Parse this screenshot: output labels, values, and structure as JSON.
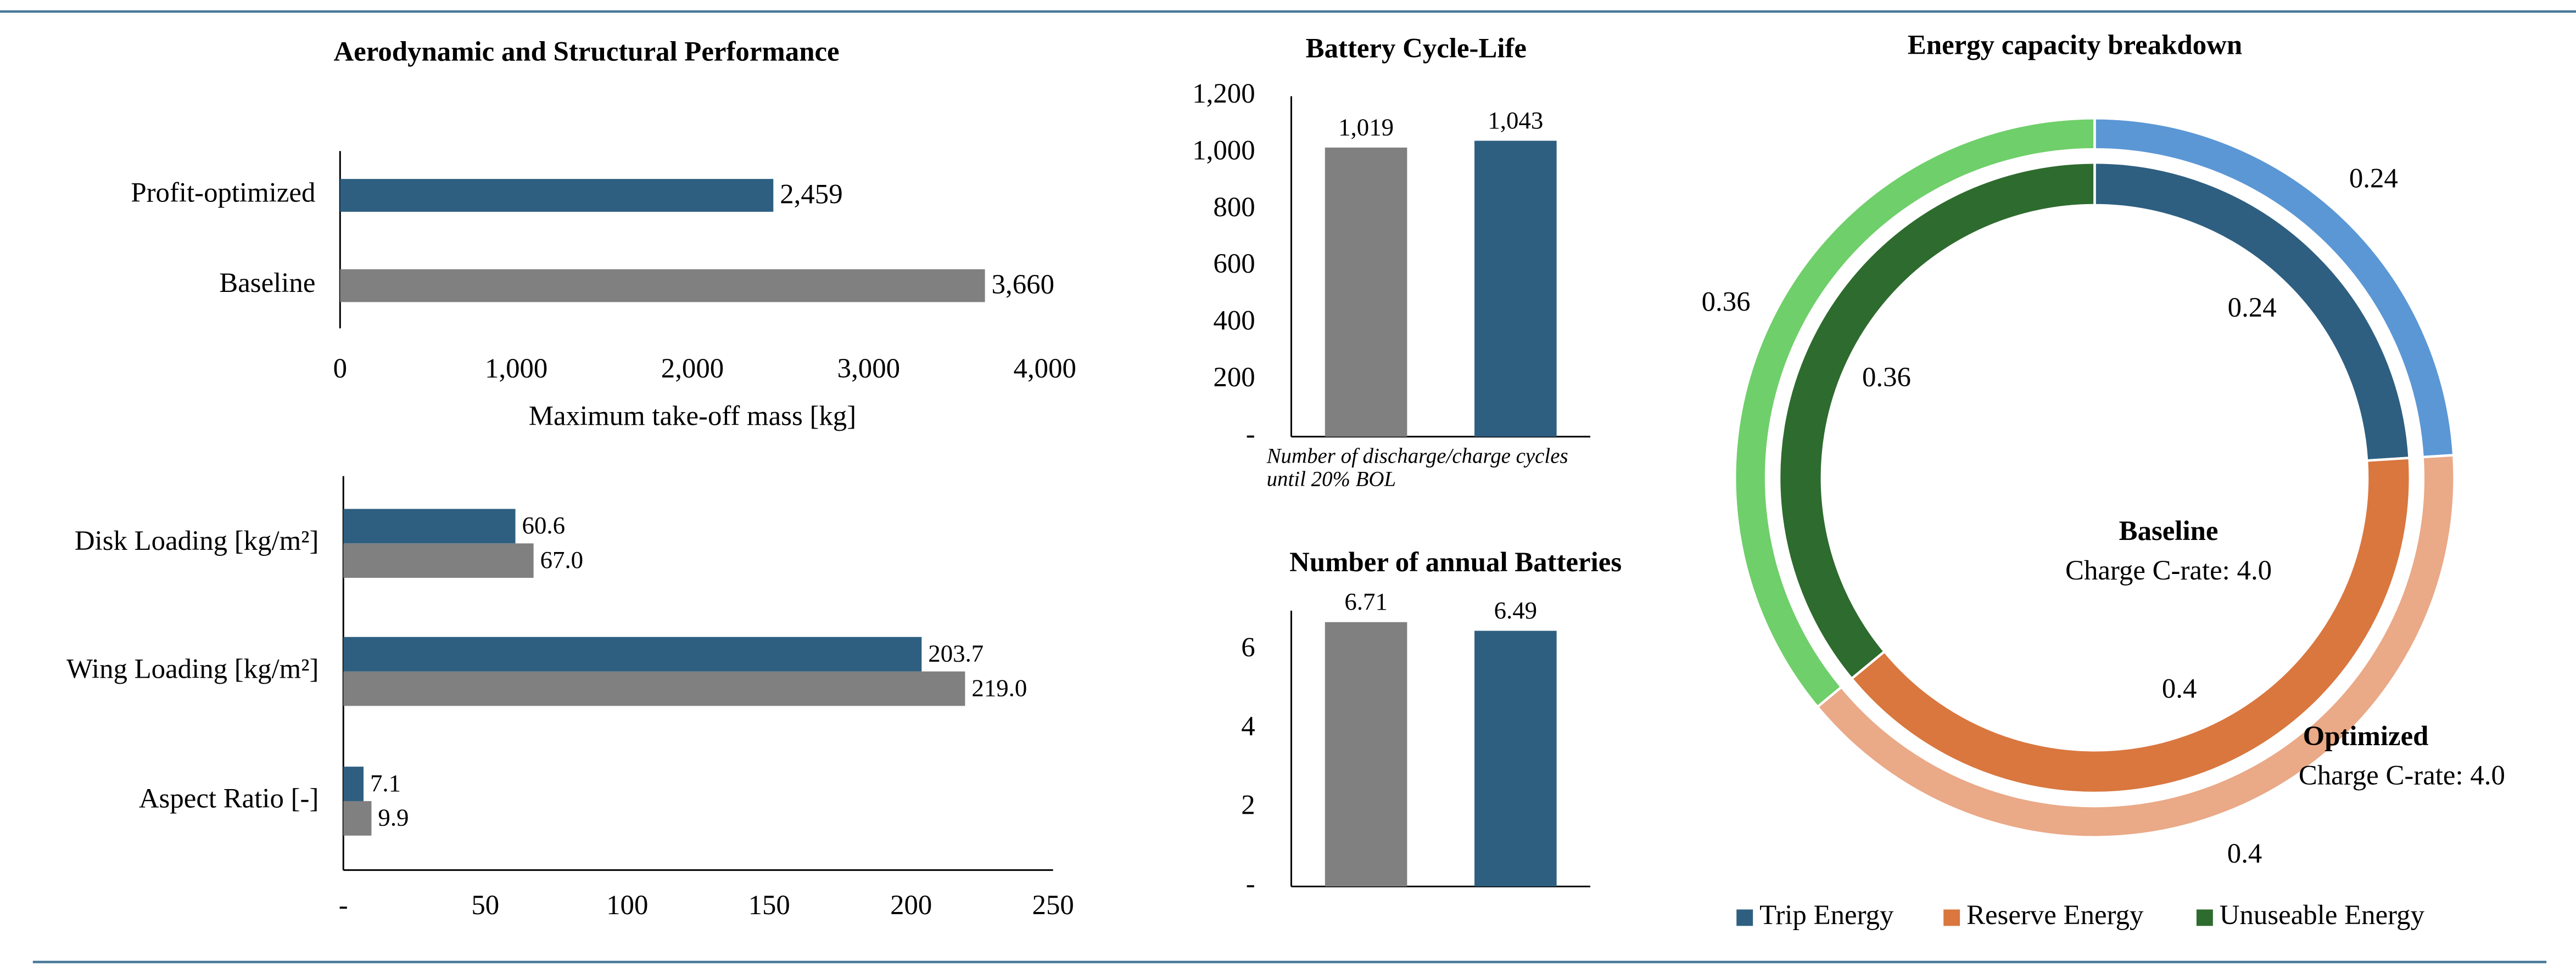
{
  "chart_data": [
    {
      "type": "bar",
      "orientation": "horizontal",
      "title": "Aerodynamic and Structural Performance",
      "categories": [
        "Profit-optimized",
        "Baseline"
      ],
      "values": [
        2459,
        3660
      ],
      "value_labels": [
        "2,459",
        "3,660"
      ],
      "colors": [
        "#2e5f80",
        "#808080"
      ],
      "xlabel": "Maximum take-off mass [kg]",
      "xlim": [
        0,
        4000
      ],
      "xticks": [
        0,
        {
          "value": 1000,
          "label": "1,000"
        },
        {
          "value": 2000,
          "label": "2,000"
        },
        {
          "value": 3000,
          "label": "3,000"
        },
        {
          "value": 4000,
          "label": "4,000"
        }
      ]
    },
    {
      "type": "bar",
      "orientation": "horizontal",
      "categories": [
        "Disk Loading [kg/m²]",
        "Wing Loading [kg/m²]",
        "Aspect Ratio [-]"
      ],
      "series": [
        {
          "color": "#2e5f80",
          "values": [
            60.6,
            203.7,
            7.1
          ],
          "value_labels": [
            "60.6",
            "203.7",
            "7.1"
          ]
        },
        {
          "color": "#808080",
          "values": [
            67.0,
            219.0,
            9.9
          ],
          "value_labels": [
            "67.0",
            "219.0",
            "9.9"
          ]
        }
      ],
      "xlim": [
        0,
        250
      ],
      "xticks": [
        {
          "value": 0,
          "label": "-"
        },
        50,
        100,
        150,
        200,
        250
      ]
    },
    {
      "type": "bar",
      "title": "Battery Cycle-Life",
      "categories": [
        null,
        null
      ],
      "values": [
        1019,
        1043
      ],
      "value_labels": [
        "1,019",
        "1,043"
      ],
      "colors": [
        "#808080",
        "#2e5f80"
      ],
      "xlabel": "Number of discharge/charge cycles until 20% BOL",
      "ylim": [
        0,
        1200
      ],
      "yticks": [
        {
          "value": 0,
          "label": "-"
        },
        200,
        400,
        600,
        800,
        {
          "value": 1000,
          "label": "1,000"
        },
        {
          "value": 1200,
          "label": "1,200"
        }
      ]
    },
    {
      "type": "bar",
      "title": "Number of annual Batteries",
      "categories": [
        null,
        null
      ],
      "values": [
        6.71,
        6.49
      ],
      "colors": [
        "#808080",
        "#2e5f80"
      ],
      "ylim": [
        0,
        7
      ],
      "yticks": [
        {
          "value": 0,
          "label": "-"
        },
        2,
        4,
        6
      ]
    },
    {
      "type": "donut",
      "title": "Energy capacity breakdown",
      "series": [
        {
          "name": "Trip Energy",
          "color": "#2e5f80",
          "values": [
            0.24,
            0.24
          ]
        },
        {
          "name": "Reserve Energy",
          "color": "#d9773f",
          "values": [
            0.4,
            0.4
          ]
        },
        {
          "name": "Unuseable Energy",
          "color": "#2e6b2e",
          "values": [
            0.36,
            0.36
          ]
        }
      ],
      "rings": [
        {
          "name": "Baseline",
          "note": "Charge C-rate: 4.0",
          "colors": [
            "#2e5f80",
            "#d9773f",
            "#2e6b2e"
          ]
        },
        {
          "name": "Optimized",
          "note": "Charge C-rate: 4.0",
          "colors": [
            "#5b97d5",
            "#eaa987",
            "#6fcf6a"
          ]
        }
      ]
    }
  ]
}
